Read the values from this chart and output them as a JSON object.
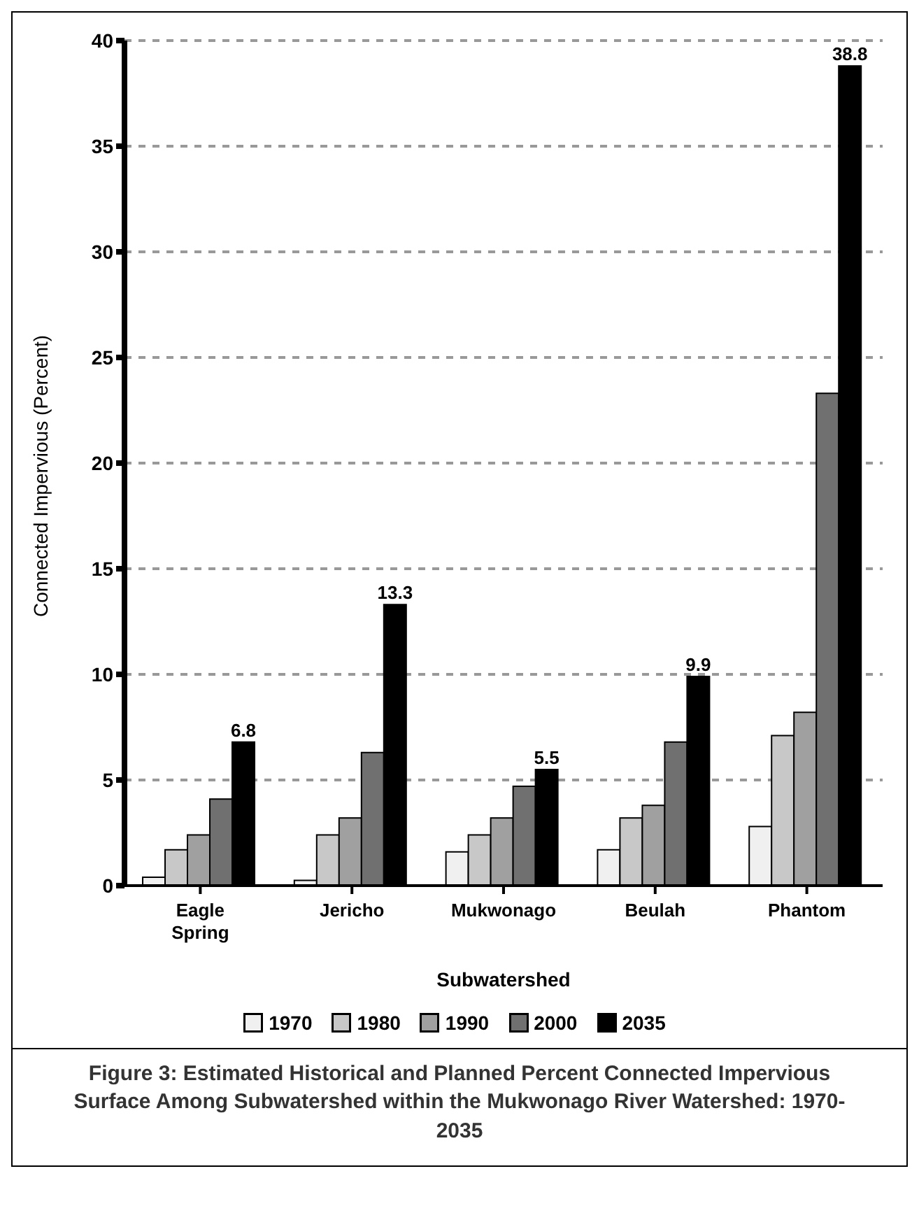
{
  "chart_data": {
    "type": "bar",
    "xlabel": "Subwatershed",
    "ylabel": "Connected Impervious (Percent)",
    "categories": [
      "Eagle Spring",
      "Jericho",
      "Mukwonago",
      "Beulah",
      "Phantom"
    ],
    "series": [
      {
        "name": "1970",
        "color": "#f0f0f0",
        "values": [
          0.4,
          0.25,
          1.6,
          1.7,
          2.8
        ]
      },
      {
        "name": "1980",
        "color": "#c8c8c8",
        "values": [
          1.7,
          2.4,
          2.4,
          3.2,
          7.1
        ]
      },
      {
        "name": "1990",
        "color": "#a0a0a0",
        "values": [
          2.4,
          3.2,
          3.2,
          3.8,
          8.2
        ]
      },
      {
        "name": "2000",
        "color": "#707070",
        "values": [
          4.1,
          6.3,
          4.7,
          6.8,
          23.3
        ]
      },
      {
        "name": "2035",
        "color": "#000000",
        "values": [
          6.8,
          13.3,
          5.5,
          9.9,
          38.8
        ],
        "value_labels": [
          "6.8",
          "13.3",
          "5.5",
          "9.9",
          "38.8"
        ]
      }
    ],
    "ylim": [
      0,
      40
    ],
    "yticks": [
      0,
      5,
      10,
      15,
      20,
      25,
      30,
      35,
      40
    ],
    "grid": "y",
    "legend": "bottom",
    "annotations": [
      "Figure 3: Estimated Historical and Planned Percent Connected Impervious Surface Among Subwatershed within the Mukwonago River Watershed: 1970-2035"
    ]
  }
}
